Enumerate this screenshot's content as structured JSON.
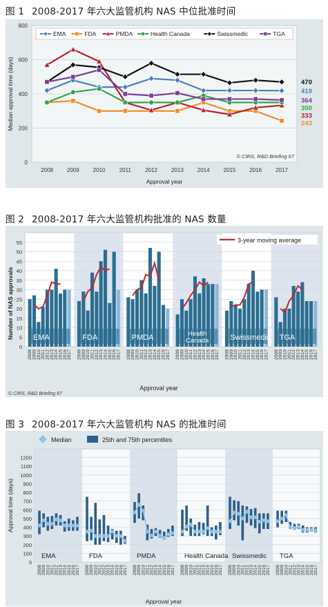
{
  "figures": [
    {
      "label": "图 1",
      "title": "2008-2017 年六大监管机构 NAS 中位批准时间"
    },
    {
      "label": "图 2",
      "title": "2008-2017 年六大监管机构批准的 NAS 数量"
    },
    {
      "label": "图 3",
      "title": "2008-2017 年六大监管机构 NAS 的批准时间"
    }
  ],
  "chart_data": [
    {
      "type": "line",
      "xlabel": "Approval year",
      "ylabel": "Median approval time (days)",
      "ylim": [
        0,
        800
      ],
      "yticks": [
        "0",
        "200",
        "400",
        "600",
        "800"
      ],
      "categories": [
        "2008",
        "2009",
        "2010",
        "2011",
        "2012",
        "2013",
        "2014",
        "2015",
        "2016",
        "2017"
      ],
      "series": [
        {
          "name": "EMA",
          "color": "#4a7fc1",
          "marker": "diamond",
          "values": [
            420,
            480,
            440,
            440,
            490,
            480,
            420,
            420,
            420,
            419
          ],
          "end_label": "419"
        },
        {
          "name": "FDA",
          "color": "#f28c28",
          "marker": "square",
          "values": [
            350,
            360,
            300,
            300,
            300,
            300,
            350,
            300,
            300,
            243
          ],
          "end_label": "243"
        },
        {
          "name": "PMDA",
          "color": "#b8202e",
          "marker": "triangle",
          "values": [
            570,
            660,
            590,
            350,
            305,
            350,
            305,
            280,
            320,
            333
          ],
          "end_label": "333"
        },
        {
          "name": "Health Canada",
          "color": "#2ea84a",
          "marker": "circle",
          "values": [
            350,
            410,
            430,
            350,
            350,
            350,
            390,
            350,
            350,
            350
          ],
          "end_label": "350"
        },
        {
          "name": "Swissmedic",
          "color": "#111111",
          "marker": "diamond",
          "values": [
            470,
            570,
            555,
            500,
            580,
            515,
            515,
            465,
            480,
            470
          ],
          "end_label": "470"
        },
        {
          "name": "TGA",
          "color": "#7b3f98",
          "marker": "square",
          "values": [
            470,
            500,
            540,
            400,
            390,
            405,
            370,
            370,
            370,
            364
          ],
          "end_label": "364"
        }
      ],
      "legend": "top",
      "watermark": "© CIRS, R&D Briefing 67"
    },
    {
      "type": "bar",
      "xlabel": "Approval year",
      "ylabel": "Number of NAS approvals",
      "ylim": [
        0,
        60
      ],
      "yticks": [
        "0",
        "5",
        "10",
        "15",
        "20",
        "25",
        "30",
        "35",
        "40",
        "45",
        "50",
        "55"
      ],
      "year_labels": [
        "2008",
        "2009",
        "2010",
        "2011",
        "2012",
        "2013",
        "2014",
        "2015",
        "2016",
        "2017"
      ],
      "legend_label": "3-year moving average",
      "watermark": "© CIRS, R&D Briefing 67",
      "groups": [
        {
          "name": "EMA",
          "values": [
            25,
            27,
            13,
            21,
            30,
            30,
            41,
            28,
            30,
            30
          ],
          "ma": [
            null,
            22,
            20,
            21,
            27,
            34,
            33,
            33,
            null,
            null
          ]
        },
        {
          "name": "FDA",
          "values": [
            24,
            29,
            19,
            39,
            29,
            45,
            51,
            23,
            50,
            30
          ],
          "ma": [
            null,
            24,
            29,
            31,
            38,
            42,
            40,
            41,
            null,
            null
          ]
        },
        {
          "name": "PMDA",
          "values": [
            26,
            25,
            30,
            35,
            28,
            52,
            32,
            50,
            22,
            20
          ],
          "ma": [
            null,
            27,
            30,
            31,
            38,
            37,
            44,
            35,
            null,
            null
          ]
        },
        {
          "name": "Health Canada",
          "values": [
            17,
            25,
            19,
            25,
            37,
            28,
            36,
            33,
            33,
            33
          ],
          "ma": [
            null,
            20,
            23,
            27,
            30,
            34,
            32,
            34,
            null,
            null
          ]
        },
        {
          "name": "Swissmedic",
          "values": [
            19,
            24,
            22,
            20,
            25,
            33,
            40,
            29,
            30,
            30
          ],
          "ma": [
            null,
            21,
            22,
            22,
            26,
            33,
            34,
            null,
            null,
            null
          ]
        },
        {
          "name": "TGA",
          "values": [
            26,
            13,
            20,
            20,
            32,
            29,
            34,
            24,
            24,
            24
          ],
          "ma": [
            null,
            20,
            18,
            24,
            27,
            32,
            30,
            null,
            null,
            null
          ]
        }
      ]
    },
    {
      "type": "box",
      "xlabel": "Approval year",
      "ylabel": "Approval time (days)",
      "ylim": [
        0,
        1300
      ],
      "yticks": [
        "0",
        "100",
        "200",
        "300",
        "400",
        "500",
        "600",
        "700",
        "800",
        "900",
        "1000",
        "1100",
        "1200"
      ],
      "year_labels": [
        "2008",
        "2009",
        "2010",
        "2011",
        "2012",
        "2013",
        "2014",
        "2015",
        "2016",
        "2017"
      ],
      "legend": {
        "median": "Median",
        "percentiles": "25th and 75th percentiles"
      },
      "groups": [
        {
          "name": "EMA",
          "medians": [
            420,
            480,
            440,
            440,
            490,
            480,
            420,
            420,
            420,
            419
          ],
          "q1": [
            320,
            400,
            360,
            380,
            420,
            420,
            350,
            360,
            360,
            360
          ],
          "q3": [
            590,
            560,
            520,
            530,
            560,
            540,
            470,
            500,
            480,
            520
          ]
        },
        {
          "name": "FDA",
          "medians": [
            350,
            360,
            300,
            300,
            300,
            300,
            350,
            300,
            300,
            243
          ],
          "q1": [
            240,
            250,
            200,
            200,
            240,
            230,
            260,
            220,
            200,
            210
          ],
          "q3": [
            750,
            520,
            680,
            490,
            540,
            420,
            380,
            360,
            360,
            300
          ]
        },
        {
          "name": "PMDA",
          "medians": [
            570,
            660,
            590,
            350,
            305,
            350,
            305,
            280,
            320,
            333
          ],
          "q1": [
            450,
            500,
            480,
            250,
            270,
            300,
            280,
            260,
            290,
            300
          ],
          "q3": [
            690,
            790,
            650,
            430,
            380,
            390,
            370,
            350,
            380,
            420
          ]
        },
        {
          "name": "Health Canada",
          "medians": [
            350,
            410,
            430,
            350,
            350,
            350,
            390,
            350,
            350,
            350
          ],
          "q1": [
            300,
            360,
            300,
            300,
            300,
            320,
            300,
            300,
            260,
            310
          ],
          "q3": [
            600,
            650,
            500,
            430,
            460,
            450,
            650,
            400,
            420,
            460
          ]
        },
        {
          "name": "Swissmedic",
          "medians": [
            470,
            570,
            555,
            500,
            580,
            515,
            515,
            465,
            480,
            470
          ],
          "q1": [
            380,
            480,
            420,
            250,
            450,
            420,
            390,
            330,
            380,
            380
          ],
          "q3": [
            750,
            710,
            700,
            650,
            640,
            610,
            620,
            560,
            560,
            560
          ]
        },
        {
          "name": "TGA",
          "medians": [
            470,
            500,
            540,
            400,
            390,
            405,
            370,
            370,
            370,
            364
          ],
          "q1": [
            400,
            440,
            460,
            380,
            370,
            380,
            340,
            340,
            350,
            340
          ],
          "q3": [
            590,
            590,
            590,
            460,
            440,
            440,
            420,
            400,
            400,
            400
          ]
        }
      ]
    }
  ]
}
